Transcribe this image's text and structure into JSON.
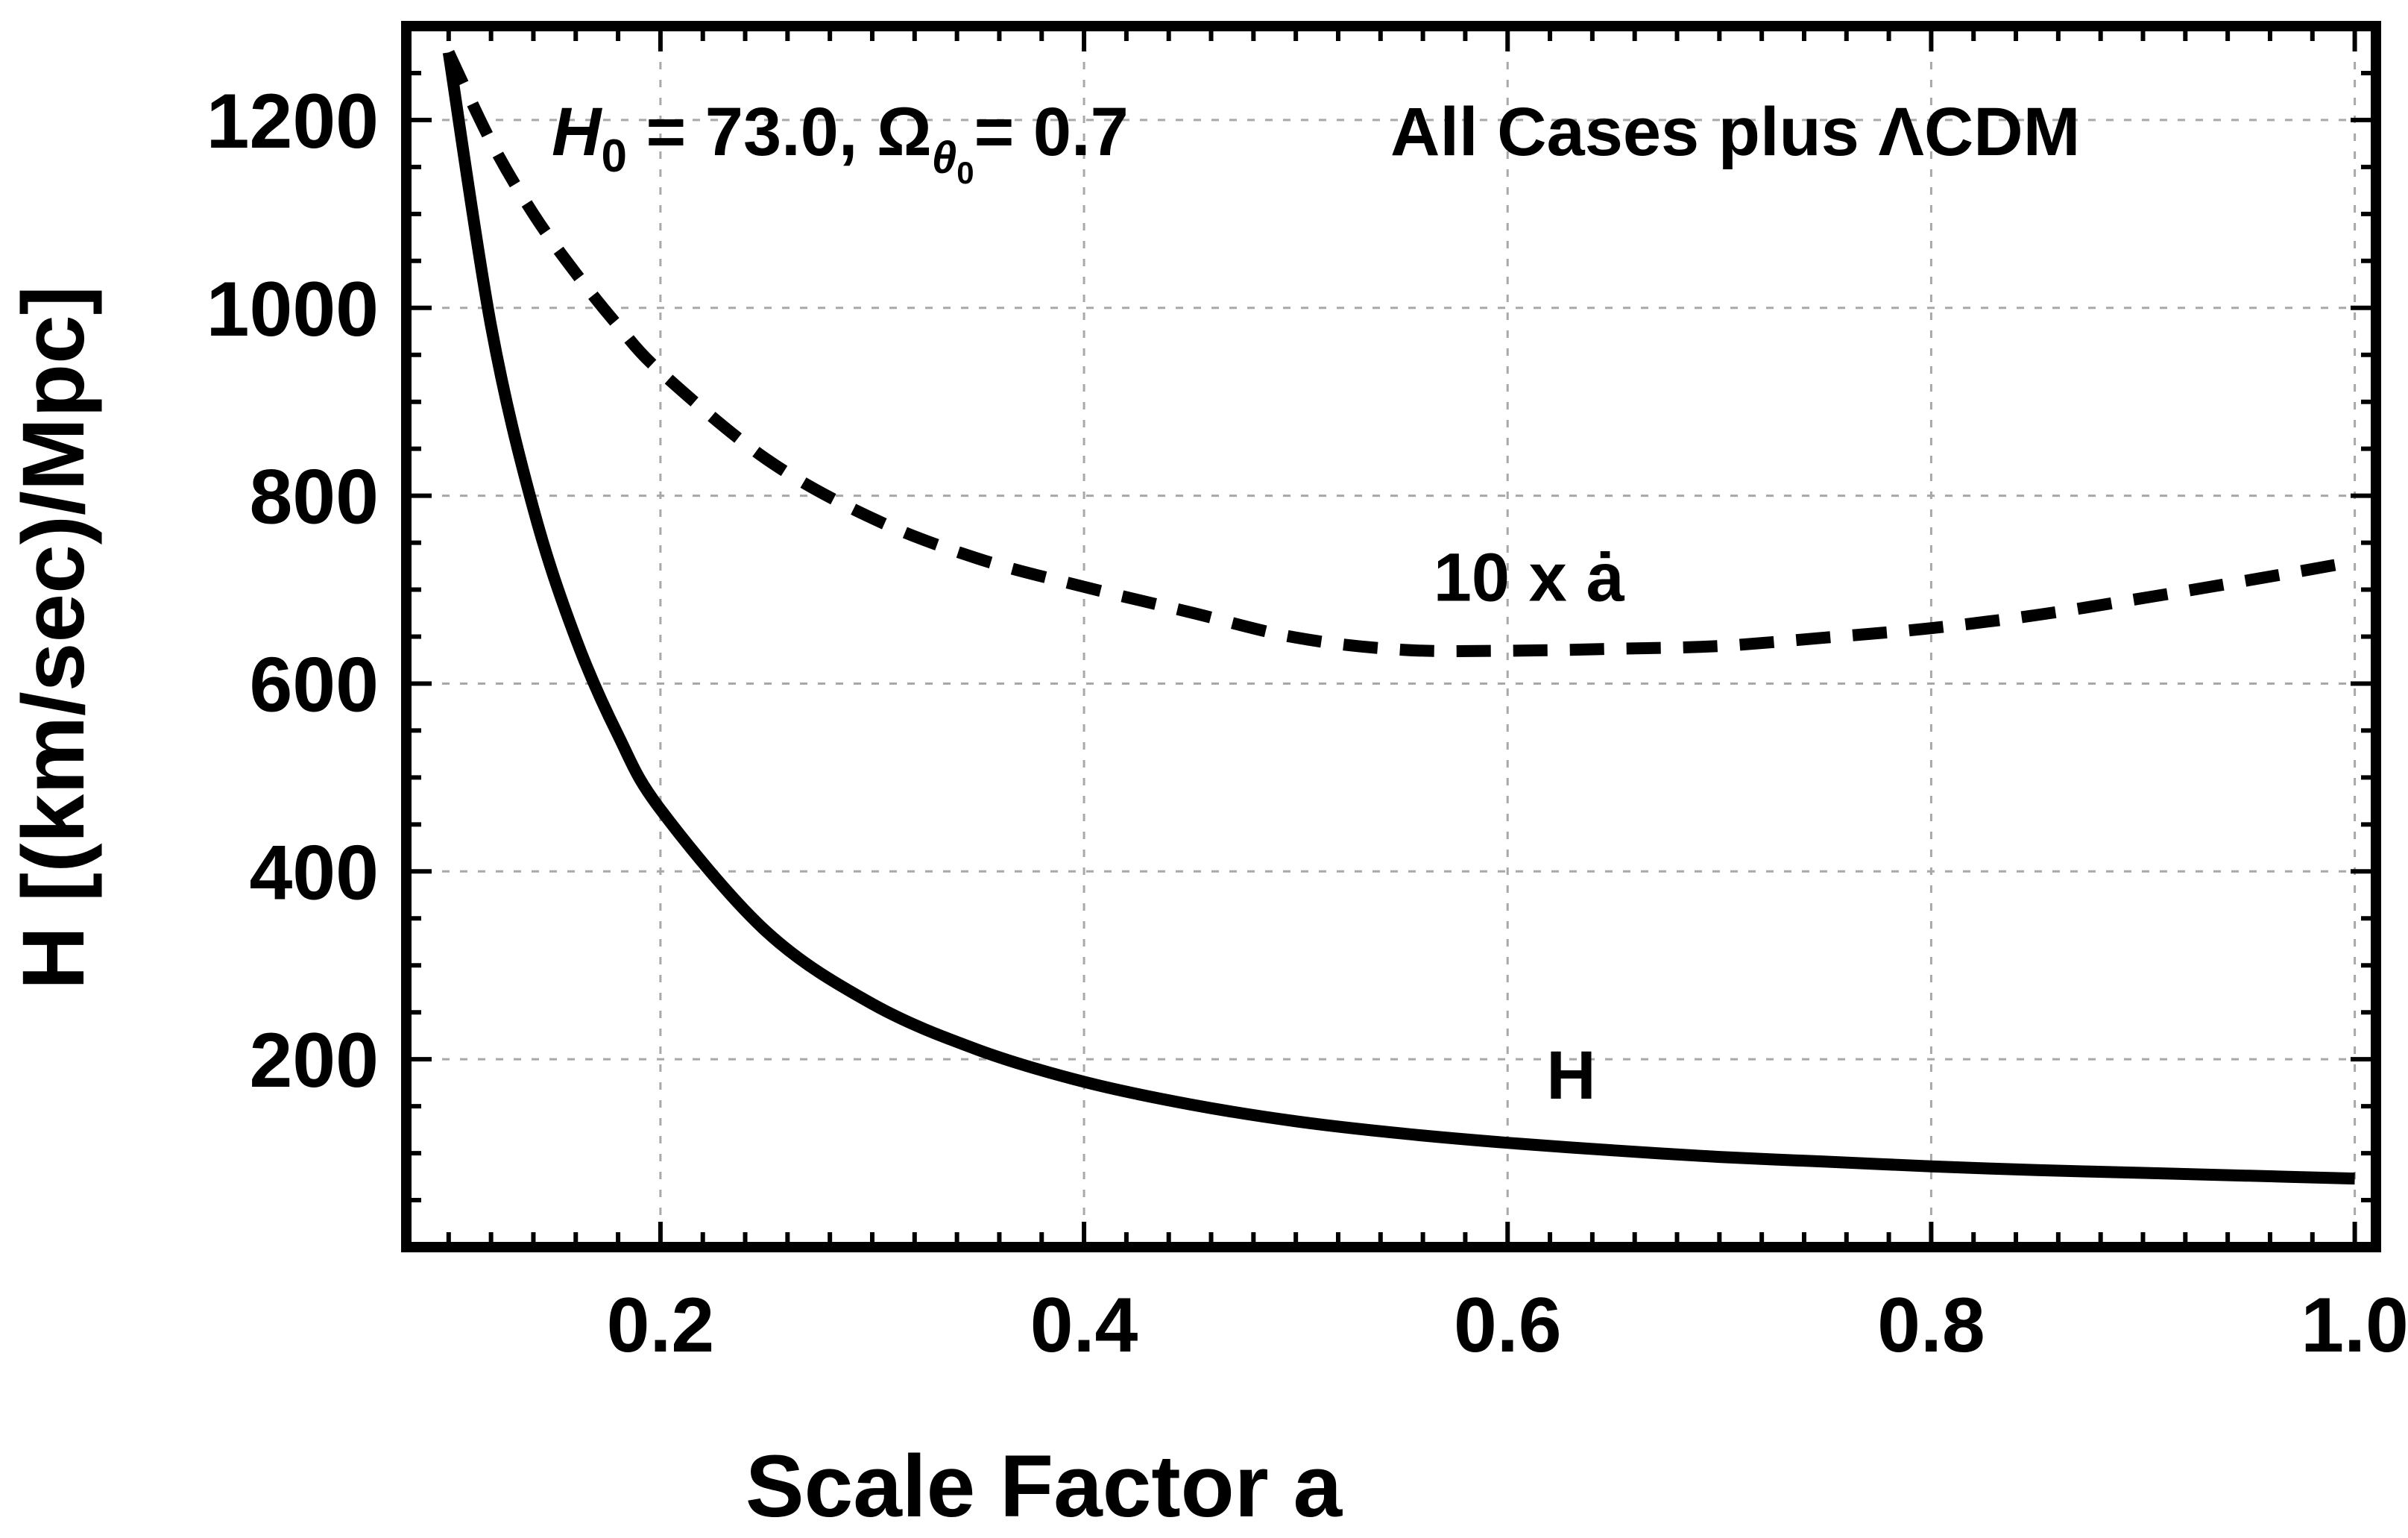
{
  "chart_data": {
    "type": "line",
    "title": {
      "h0_symbol": "H",
      "h0_sub": "0",
      "h0_value": " = 73.0, ",
      "omega_symbol": "Ω",
      "omega_sub": "θ",
      "omega_subsub": "0",
      "omega_value": "= 0.7",
      "suffix": "All Cases plus ΛCDM"
    },
    "xlabel": "Scale Factor a",
    "ylabel": "H [(km/sec)/Mpc]",
    "xlim": [
      0.08,
      1.01
    ],
    "ylim": [
      0,
      1300
    ],
    "grid": true,
    "x_ticks": [
      0.2,
      0.4,
      0.6,
      0.8,
      1.0
    ],
    "x_tick_labels": [
      "0.2",
      "0.4",
      "0.6",
      "0.8",
      "1.0"
    ],
    "y_ticks": [
      200,
      400,
      600,
      800,
      1000,
      1200
    ],
    "y_tick_labels": [
      "200",
      "400",
      "600",
      "800",
      "1000",
      "1200"
    ],
    "series": [
      {
        "name": "H",
        "style": "solid",
        "x": [
          0.1,
          0.12,
          0.14,
          0.16,
          0.18,
          0.2,
          0.25,
          0.3,
          0.35,
          0.4,
          0.45,
          0.5,
          0.55,
          0.6,
          0.65,
          0.7,
          0.75,
          0.8,
          0.85,
          0.9,
          0.95,
          1.0
        ],
        "values": [
          1272,
          981,
          786,
          648,
          545,
          466,
          336,
          259,
          210,
          176,
          152,
          134,
          121,
          111,
          103,
          96,
          91,
          86,
          82,
          79,
          76,
          73
        ]
      },
      {
        "name": "10 x ȧ",
        "style": "dashed",
        "x": [
          0.1,
          0.12,
          0.14,
          0.16,
          0.18,
          0.2,
          0.25,
          0.3,
          0.35,
          0.4,
          0.45,
          0.5,
          0.55,
          0.6,
          0.65,
          0.7,
          0.75,
          0.8,
          0.85,
          0.9,
          0.95,
          1.0
        ],
        "values": [
          1272,
          1177,
          1100,
          1037,
          981,
          932,
          839,
          776,
          733,
          703,
          676,
          649,
          636,
          635,
          637,
          640,
          649,
          659,
          673,
          691,
          710,
          730
        ]
      }
    ],
    "annotations": [
      {
        "text": "10 x ȧ",
        "x": 0.61,
        "y": 688,
        "target": "10 x ȧ"
      },
      {
        "text": "H",
        "x": 0.63,
        "y": 158,
        "target": "H"
      }
    ],
    "colors": {
      "line": "#000000",
      "grid": "#a8a8a8",
      "frame": "#000000"
    }
  }
}
